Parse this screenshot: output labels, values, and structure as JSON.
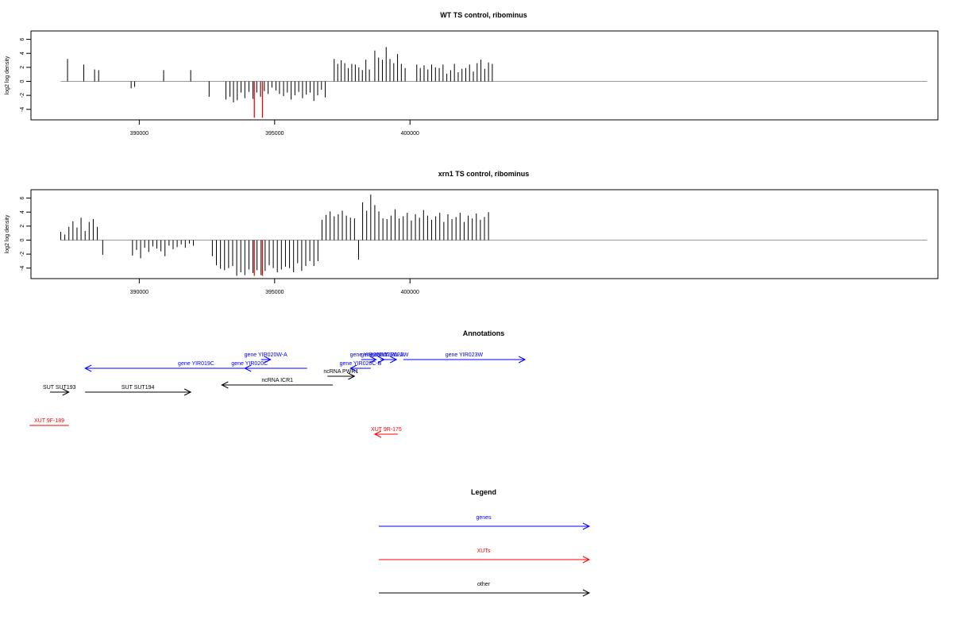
{
  "chart_data": [
    {
      "type": "bar",
      "title": "WT TS control, ribominus",
      "ylabel": "log2 log density",
      "ylim": [
        -5.5,
        7.2
      ],
      "yticks": [
        -4,
        -2,
        0,
        2,
        4,
        6
      ],
      "xlim": [
        386000,
        419500
      ],
      "xticks": [
        390000,
        395000,
        400000
      ],
      "xtick_labels": [
        "390000",
        "395000",
        "400000"
      ],
      "grid": false,
      "colors": {
        "bars": "#000000",
        "highlight": "#ff0000",
        "baseline": "#999999"
      },
      "baseline": [
        387100,
        419100
      ],
      "highlight_x": [
        394250,
        394550
      ],
      "highlight_values": [
        -5.2,
        -5.2
      ],
      "x": [
        387350,
        387950,
        388350,
        388500,
        389700,
        389830,
        390900,
        391900,
        392580,
        393200,
        393350,
        393480,
        393620,
        393760,
        393900,
        394050,
        394200,
        394340,
        394480,
        394620,
        394760,
        394900,
        395050,
        395180,
        395330,
        395470,
        395610,
        395750,
        395890,
        396030,
        396170,
        396310,
        396450,
        396590,
        396730,
        396870,
        397200,
        397330,
        397460,
        397590,
        397720,
        397850,
        397980,
        398110,
        398240,
        398370,
        398500,
        398700,
        398840,
        398980,
        399120,
        399260,
        399400,
        399540,
        399680,
        399820,
        400250,
        400380,
        400520,
        400660,
        400800,
        400940,
        401080,
        401220,
        401360,
        401500,
        401640,
        401780,
        401920,
        402060,
        402200,
        402340,
        402480,
        402620,
        402760,
        402900,
        403040
      ],
      "values": [
        3.2,
        2.4,
        1.7,
        1.6,
        -1.0,
        -0.8,
        1.6,
        1.6,
        -2.2,
        -2.6,
        -2.2,
        -3.0,
        -2.7,
        -1.6,
        -2.4,
        -1.5,
        -2.5,
        -1.6,
        -2.2,
        -1.4,
        -1.8,
        -0.9,
        -1.3,
        -1.8,
        -2.1,
        -1.6,
        -2.6,
        -2.0,
        -1.5,
        -2.4,
        -1.9,
        -1.6,
        -2.8,
        -2.0,
        -1.2,
        -2.3,
        3.2,
        2.5,
        3.0,
        2.6,
        1.9,
        2.5,
        2.4,
        2.0,
        1.6,
        3.1,
        1.7,
        4.4,
        3.4,
        3.1,
        4.9,
        3.2,
        2.6,
        3.9,
        2.5,
        1.9,
        2.4,
        1.9,
        2.3,
        1.7,
        2.4,
        2.0,
        1.9,
        2.4,
        1.1,
        1.6,
        2.5,
        1.3,
        1.8,
        1.9,
        2.4,
        1.4,
        2.6,
        3.1,
        1.8,
        2.7,
        2.5
      ]
    },
    {
      "type": "bar",
      "title": "xrn1 TS control, ribominus",
      "ylabel": "log2 log density",
      "ylim": [
        -5.5,
        7.2
      ],
      "yticks": [
        -4,
        -2,
        0,
        2,
        4,
        6
      ],
      "xlim": [
        386000,
        419500
      ],
      "xticks": [
        390000,
        395000,
        400000
      ],
      "xtick_labels": [
        "390000",
        "395000",
        "400000"
      ],
      "grid": false,
      "colors": {
        "bars": "#000000",
        "highlight": "#ff0000",
        "baseline": "#999999"
      },
      "baseline": [
        387100,
        419100
      ],
      "highlight_x": [
        394250,
        394550
      ],
      "highlight_values": [
        -5.1,
        -5.1
      ],
      "x": [
        387100,
        387250,
        387400,
        387550,
        387700,
        387850,
        388000,
        388150,
        388300,
        388450,
        388650,
        389750,
        389900,
        390050,
        390200,
        390350,
        390500,
        390650,
        390800,
        390950,
        391100,
        391250,
        391400,
        391550,
        391700,
        391850,
        392000,
        392700,
        392850,
        393000,
        393150,
        393300,
        393450,
        393600,
        393750,
        393900,
        394050,
        394200,
        394350,
        394500,
        394650,
        394800,
        394950,
        395100,
        395250,
        395400,
        395550,
        395700,
        395850,
        396000,
        396150,
        396300,
        396450,
        396600,
        396750,
        396900,
        397050,
        397200,
        397350,
        397500,
        397650,
        397800,
        397950,
        398100,
        398250,
        398400,
        398550,
        398700,
        398850,
        399000,
        399150,
        399300,
        399450,
        399600,
        399750,
        399900,
        400050,
        400200,
        400350,
        400500,
        400650,
        400800,
        400950,
        401100,
        401250,
        401400,
        401550,
        401700,
        401850,
        402000,
        402150,
        402300,
        402450,
        402600,
        402750,
        402900
      ],
      "values": [
        1.2,
        0.8,
        1.9,
        2.7,
        1.8,
        3.2,
        1.3,
        2.6,
        3.0,
        1.9,
        -2.1,
        -2.2,
        -1.4,
        -2.6,
        -1.1,
        -1.7,
        -0.9,
        -1.2,
        -1.6,
        -2.3,
        -0.8,
        -1.3,
        -1.0,
        -0.6,
        -1.1,
        -0.5,
        -0.8,
        -2.3,
        -3.6,
        -4.1,
        -4.3,
        -4.0,
        -3.7,
        -5.1,
        -4.6,
        -5.0,
        -4.2,
        -4.7,
        -4.3,
        -5.0,
        -4.4,
        -3.6,
        -4.0,
        -4.6,
        -4.2,
        -3.8,
        -4.0,
        -4.6,
        -3.3,
        -4.4,
        -3.7,
        -3.0,
        -3.7,
        -3.0,
        2.9,
        3.6,
        4.1,
        3.4,
        3.7,
        4.2,
        3.5,
        3.2,
        3.1,
        -2.8,
        5.4,
        4.2,
        6.5,
        5.0,
        4.1,
        3.1,
        3.0,
        3.5,
        4.4,
        3.1,
        3.4,
        3.9,
        2.8,
        3.7,
        3.2,
        4.3,
        3.5,
        2.9,
        3.4,
        3.9,
        2.6,
        3.7,
        3.0,
        3.3,
        3.9,
        2.6,
        3.5,
        3.1,
        3.8,
        2.9,
        3.3,
        4.0
      ]
    }
  ],
  "annotations": {
    "title": "Annotations",
    "features": [
      {
        "label": "gene YIR019C",
        "x0": 388000,
        "x1": 396200,
        "row": 1,
        "strand": "-",
        "color": "#0000ff"
      },
      {
        "label": "gene YIR020C",
        "x0": 393900,
        "x1": 394250,
        "row": 1,
        "strand": "-",
        "color": "#0000ff"
      },
      {
        "label": "gene YIR020W-A",
        "x0": 394500,
        "x1": 394850,
        "row": 0,
        "strand": "+",
        "color": "#0000ff"
      },
      {
        "label": "ncRNA PWR1",
        "x0": 396950,
        "x1": 397950,
        "row": 2,
        "strand": "+",
        "color": "#000000"
      },
      {
        "label": "ncRNA ICR1",
        "x0": 393050,
        "x1": 397150,
        "row": 3,
        "strand": "-",
        "color": "#000000"
      },
      {
        "label": "gene YIR020C-B",
        "x0": 397800,
        "x1": 398550,
        "row": 1,
        "strand": "-",
        "color": "#0000ff"
      },
      {
        "label": "gene YIR021W",
        "x0": 398200,
        "x1": 398750,
        "row": 0,
        "strand": "+",
        "color": "#0000ff"
      },
      {
        "label": "gene YIR021W-A",
        "x0": 398900,
        "x1": 399050,
        "row": 0,
        "strand": "+",
        "color": "#0000ff"
      },
      {
        "label": "gene YIR022W",
        "x0": 399000,
        "x1": 399500,
        "row": 0,
        "strand": "+",
        "color": "#0000ff"
      },
      {
        "label": "gene YIR023W",
        "x0": 399750,
        "x1": 404250,
        "row": 0,
        "strand": "+",
        "color": "#0000ff"
      },
      {
        "label": "SUT SUT193",
        "x0": 386700,
        "x1": 387400,
        "row": 4,
        "strand": "+",
        "color": "#000000"
      },
      {
        "label": "SUT SUT194",
        "x0": 388000,
        "x1": 391900,
        "row": 4,
        "strand": "+",
        "color": "#000000"
      },
      {
        "label": "XUT 9F-189",
        "x0": 385950,
        "x1": 387400,
        "row": 5,
        "strand": "+",
        "color": "#ff0000"
      },
      {
        "label": "XUT 9R-175",
        "x0": 398700,
        "x1": 399550,
        "row": 6,
        "strand": "-",
        "color": "#ff0000"
      }
    ]
  },
  "legend": {
    "title": "Legend",
    "items": [
      {
        "label": "genes",
        "color": "#0000ff"
      },
      {
        "label": "XUTs",
        "color": "#ff0000"
      },
      {
        "label": "other",
        "color": "#000000"
      }
    ]
  }
}
